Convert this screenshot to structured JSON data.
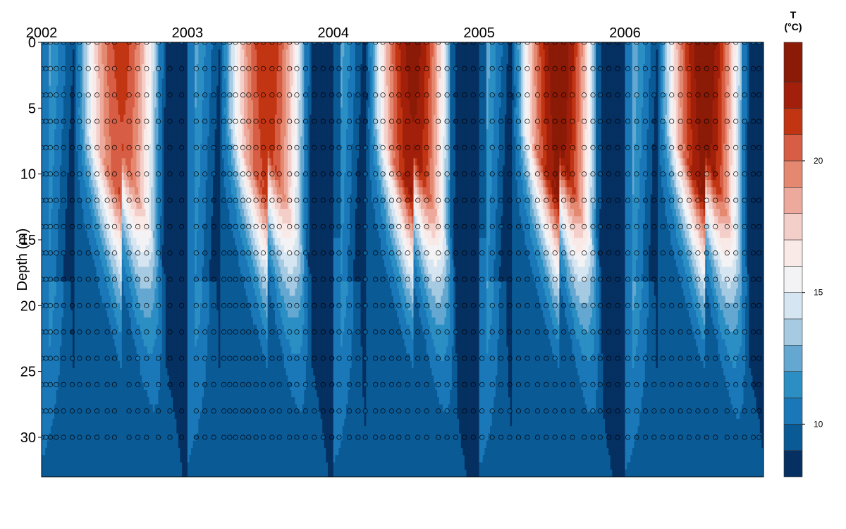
{
  "chart_data": {
    "type": "heatmap",
    "title": "",
    "xlabel": "",
    "ylabel": "Depth (m)",
    "x_tick_labels": [
      "2002",
      "2003",
      "2004",
      "2005",
      "2006"
    ],
    "x_tick_values": [
      2002.0,
      2003.0,
      2004.0,
      2005.0,
      2006.0
    ],
    "xlim": [
      2002.0,
      2006.95
    ],
    "y_ticks": [
      0,
      5,
      10,
      15,
      20,
      25,
      30
    ],
    "ylim": [
      33,
      0
    ],
    "y_reversed": true,
    "grid": false,
    "colorbar": {
      "title": "T\n(°C)",
      "title_lines": [
        "T",
        "(°C)"
      ],
      "range": [
        8,
        24.5
      ],
      "ticks": [
        10,
        15,
        20
      ],
      "tick_labels": [
        "10",
        "15",
        "20"
      ],
      "levels": [
        8,
        9,
        10,
        11,
        12,
        13,
        14,
        15,
        16,
        17,
        18,
        19,
        20,
        21,
        22,
        23,
        24.5
      ],
      "colors": [
        "#053061",
        "#0a5a96",
        "#1a78b8",
        "#2b8fc4",
        "#64a8d2",
        "#a5cae2",
        "#d5e5f1",
        "#f3f3f5",
        "#f9e9e7",
        "#f4cfc9",
        "#edaa9c",
        "#e48870",
        "#d75e45",
        "#c23513",
        "#a2200b",
        "#8b1a07",
        "#68140a"
      ]
    },
    "temperature_profile": {
      "description_units": "°C",
      "surface_summer_peak": [
        21.5,
        22.0,
        23.5,
        24.0,
        24.0
      ],
      "winter_min": [
        9.0,
        9.0,
        8.5,
        8.5,
        9.0
      ],
      "deep_water": 10.0
    },
    "sample_dates": [
      2002.0,
      2002.03,
      2002.06,
      2002.1,
      2002.15,
      2002.21,
      2002.26,
      2002.32,
      2002.38,
      2002.45,
      2002.5,
      2002.6,
      2002.66,
      2002.72,
      2002.8,
      2002.88,
      2002.96,
      2003.06,
      2003.12,
      2003.18,
      2003.25,
      2003.29,
      2003.33,
      2003.38,
      2003.42,
      2003.47,
      2003.52,
      2003.58,
      2003.63,
      2003.7,
      2003.75,
      2003.81,
      2003.87,
      2003.93,
      2003.99,
      2004.04,
      2004.11,
      2004.17,
      2004.22,
      2004.29,
      2004.34,
      2004.4,
      2004.45,
      2004.51,
      2004.58,
      2004.64,
      2004.72,
      2004.78,
      2004.84,
      2004.9,
      2004.96,
      2005.02,
      2005.09,
      2005.15,
      2005.21,
      2005.27,
      2005.33,
      2005.4,
      2005.46,
      2005.52,
      2005.58,
      2005.64,
      2005.72,
      2005.78,
      2005.83,
      2005.89,
      2005.95,
      2006.02,
      2006.08,
      2006.14,
      2006.2,
      2006.26,
      2006.32,
      2006.38,
      2006.44,
      2006.5,
      2006.56,
      2006.62,
      2006.7,
      2006.76,
      2006.82,
      2006.88,
      2006.92
    ],
    "sample_depths": [
      0,
      2,
      4,
      6,
      8,
      10,
      12,
      14,
      16,
      18,
      20,
      22,
      24,
      26,
      28,
      30
    ]
  }
}
